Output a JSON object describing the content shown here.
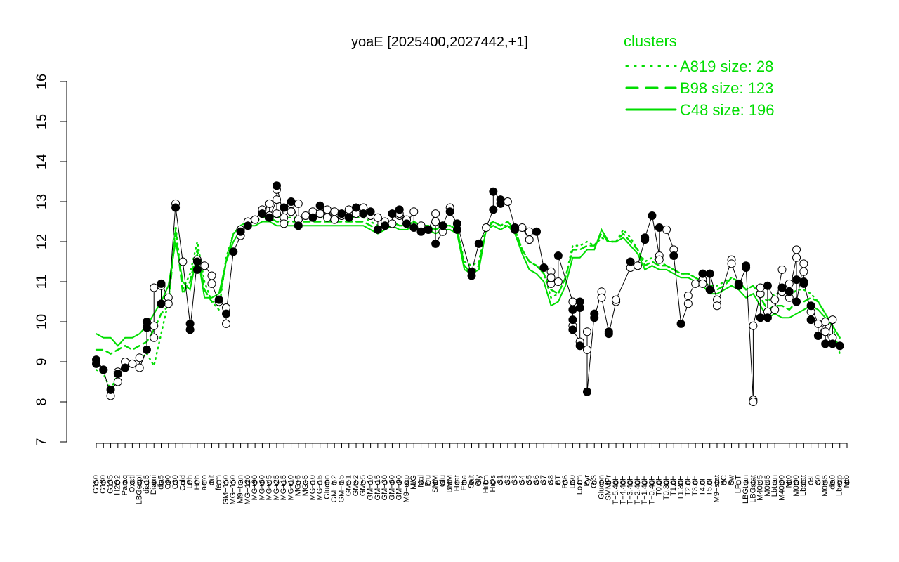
{
  "chart_data": {
    "type": "line",
    "title": "yoaE [2025400,2027442,+1]",
    "xlabel": "",
    "ylabel": "",
    "ylim": [
      7,
      16
    ],
    "yticks": [
      7,
      8,
      9,
      10,
      11,
      12,
      13,
      14,
      15,
      16
    ],
    "grid": false,
    "x_tick_labels": [
      "G150",
      "G180",
      "G135",
      "H2O2",
      "Paraq",
      "Oxctl",
      "LBGexpl",
      "dia15",
      "Diami",
      "dia5",
      "C90",
      "C30",
      "Cold",
      "LPh",
      "HPh",
      "aero",
      "nit",
      "ferm",
      "GM+150",
      "MG+150",
      "M9−tran",
      "MG+120",
      "MG+90",
      "MG+60",
      "MG+45",
      "MG+25",
      "MG+15",
      "MG+10",
      "MG+5",
      "MG−5",
      "MG−10",
      "MG−15",
      "Glucon",
      "GM−0.2",
      "GM−0.5",
      "GM−1",
      "GM−2",
      "GM−5",
      "GM−10",
      "GM−15",
      "GM−30",
      "GM−60",
      "GM−90",
      "M9−exp",
      "M/G",
      "Mal",
      "Fru",
      "SMM",
      "Glu",
      "BMM",
      "Heat",
      "Etha",
      "Salt",
      "Gly",
      "HiTm",
      "HiOs",
      "S1",
      "S2",
      "S3",
      "S4",
      "S5",
      "S6",
      "S7",
      "S8",
      "BT",
      "B36",
      "B60",
      "LoTm",
      "Pyr",
      "G/S",
      "Glucon",
      "SMMPr",
      "T−5.40H",
      "T−4.40H",
      "T−3.40H",
      "T−2.40H",
      "T−1.40H",
      "T−0.40H",
      "T0.0H",
      "T0.30H",
      "T1.0H",
      "T1.30H",
      "T2.0H",
      "T3.0H",
      "T4.0H",
      "T5.0H",
      "M9−stat",
      "BC",
      "Sw",
      "LPhT",
      "LBGtran",
      "LBGstat",
      "M40t45",
      "M0t45",
      "Lbtran",
      "M40t90",
      "Mt0",
      "M0t90",
      "Lbstat",
      "BI",
      "S0",
      "M0t45",
      "dia0",
      "Lbexp",
      "Mt0"
    ],
    "points": {
      "open": [
        [
          1,
          8.8
        ],
        [
          2,
          8.15
        ],
        [
          3,
          8.5
        ],
        [
          3,
          8.75
        ],
        [
          4,
          9.0
        ],
        [
          5,
          8.95
        ],
        [
          6,
          9.1
        ],
        [
          6,
          8.85
        ],
        [
          8,
          9.6
        ],
        [
          8,
          9.9
        ],
        [
          8,
          10.85
        ],
        [
          9,
          10.9
        ],
        [
          10,
          10.6
        ],
        [
          10,
          10.45
        ],
        [
          11,
          12.95
        ],
        [
          12,
          11.5
        ],
        [
          14,
          11.55
        ],
        [
          15,
          11.4
        ],
        [
          16,
          11.15
        ],
        [
          16,
          10.95
        ],
        [
          17,
          10.5
        ],
        [
          18,
          10.35
        ],
        [
          18,
          9.95
        ],
        [
          20,
          12.15
        ],
        [
          20,
          12.3
        ],
        [
          21,
          12.5
        ],
        [
          22,
          12.55
        ],
        [
          23,
          12.8
        ],
        [
          24,
          12.95
        ],
        [
          24,
          12.65
        ],
        [
          25,
          13.05
        ],
        [
          25,
          13.3
        ],
        [
          25,
          12.7
        ],
        [
          26,
          12.6
        ],
        [
          26,
          12.45
        ],
        [
          27,
          12.95
        ],
        [
          27,
          12.75
        ],
        [
          28,
          12.55
        ],
        [
          28,
          12.95
        ],
        [
          29,
          12.65
        ],
        [
          30,
          12.75
        ],
        [
          31,
          12.7
        ],
        [
          32,
          12.6
        ],
        [
          32,
          12.8
        ],
        [
          33,
          12.55
        ],
        [
          33,
          12.75
        ],
        [
          34,
          12.65
        ],
        [
          35,
          12.8
        ],
        [
          36,
          12.7
        ],
        [
          37,
          12.85
        ],
        [
          38,
          12.65
        ],
        [
          39,
          12.6
        ],
        [
          40,
          12.5
        ],
        [
          41,
          12.45
        ],
        [
          42,
          12.65
        ],
        [
          42,
          12.7
        ],
        [
          43,
          12.55
        ],
        [
          44,
          12.75
        ],
        [
          45,
          12.4
        ],
        [
          46,
          12.3
        ],
        [
          47,
          12.7
        ],
        [
          47,
          12.5
        ],
        [
          48,
          12.25
        ],
        [
          49,
          12.85
        ],
        [
          50,
          12.45
        ],
        [
          54,
          12.35
        ],
        [
          57,
          13.0
        ],
        [
          59,
          12.35
        ],
        [
          60,
          12.05
        ],
        [
          60,
          12.25
        ],
        [
          63,
          11.25
        ],
        [
          63,
          10.95
        ],
        [
          63,
          11.1
        ],
        [
          64,
          11.0
        ],
        [
          66,
          10.5
        ],
        [
          66,
          9.9
        ],
        [
          67,
          9.5
        ],
        [
          68,
          9.3
        ],
        [
          68,
          9.75
        ],
        [
          70,
          10.75
        ],
        [
          70,
          10.6
        ],
        [
          72,
          10.5
        ],
        [
          72,
          10.55
        ],
        [
          74,
          11.35
        ],
        [
          75,
          11.4
        ],
        [
          78,
          11.65
        ],
        [
          78,
          11.55
        ],
        [
          79,
          12.3
        ],
        [
          80,
          11.8
        ],
        [
          82,
          10.45
        ],
        [
          82,
          10.65
        ],
        [
          83,
          10.95
        ],
        [
          84,
          11.05
        ],
        [
          84,
          10.95
        ],
        [
          86,
          10.55
        ],
        [
          86,
          10.4
        ],
        [
          88,
          11.55
        ],
        [
          88,
          11.45
        ],
        [
          91,
          8.05
        ],
        [
          91,
          8.0
        ],
        [
          91,
          9.9
        ],
        [
          92,
          10.7
        ],
        [
          92,
          10.85
        ],
        [
          93,
          10.25
        ],
        [
          94,
          10.55
        ],
        [
          94,
          10.3
        ],
        [
          95,
          11.3
        ],
        [
          95,
          10.75
        ],
        [
          96,
          10.6
        ],
        [
          96,
          10.95
        ],
        [
          97,
          11.6
        ],
        [
          97,
          11.8
        ],
        [
          98,
          11.45
        ],
        [
          98,
          11.25
        ],
        [
          99,
          10.25
        ],
        [
          100,
          9.95
        ],
        [
          101,
          10.0
        ],
        [
          101,
          9.75
        ],
        [
          102,
          10.05
        ],
        [
          102,
          9.6
        ]
      ],
      "filled": [
        [
          0,
          8.95
        ],
        [
          0,
          9.05
        ],
        [
          1,
          8.8
        ],
        [
          2,
          8.3
        ],
        [
          3,
          8.7
        ],
        [
          4,
          8.85
        ],
        [
          7,
          9.3
        ],
        [
          7,
          9.85
        ],
        [
          7,
          10.0
        ],
        [
          9,
          10.45
        ],
        [
          9,
          10.95
        ],
        [
          11,
          12.85
        ],
        [
          13,
          9.95
        ],
        [
          13,
          9.8
        ],
        [
          14,
          11.5
        ],
        [
          14,
          11.3
        ],
        [
          17,
          10.55
        ],
        [
          18,
          10.2
        ],
        [
          19,
          11.75
        ],
        [
          20,
          12.25
        ],
        [
          21,
          12.4
        ],
        [
          23,
          12.7
        ],
        [
          24,
          12.6
        ],
        [
          25,
          13.4
        ],
        [
          26,
          12.85
        ],
        [
          27,
          13.0
        ],
        [
          28,
          12.4
        ],
        [
          30,
          12.6
        ],
        [
          31,
          12.9
        ],
        [
          34,
          12.7
        ],
        [
          35,
          12.6
        ],
        [
          36,
          12.85
        ],
        [
          37,
          12.7
        ],
        [
          38,
          12.75
        ],
        [
          39,
          12.3
        ],
        [
          40,
          12.4
        ],
        [
          41,
          12.7
        ],
        [
          42,
          12.8
        ],
        [
          43,
          12.45
        ],
        [
          44,
          12.35
        ],
        [
          45,
          12.25
        ],
        [
          46,
          12.3
        ],
        [
          47,
          11.95
        ],
        [
          48,
          12.4
        ],
        [
          49,
          12.75
        ],
        [
          50,
          12.3
        ],
        [
          50,
          12.45
        ],
        [
          52,
          11.15
        ],
        [
          52,
          11.25
        ],
        [
          53,
          11.95
        ],
        [
          55,
          12.8
        ],
        [
          55,
          13.25
        ],
        [
          56,
          13.05
        ],
        [
          56,
          12.95
        ],
        [
          58,
          12.35
        ],
        [
          58,
          12.3
        ],
        [
          61,
          12.25
        ],
        [
          62,
          11.35
        ],
        [
          64,
          11.65
        ],
        [
          66,
          10.3
        ],
        [
          66,
          10.05
        ],
        [
          66,
          9.8
        ],
        [
          67,
          10.35
        ],
        [
          67,
          10.5
        ],
        [
          67,
          9.4
        ],
        [
          68,
          8.25
        ],
        [
          69,
          10.2
        ],
        [
          69,
          10.1
        ],
        [
          71,
          9.75
        ],
        [
          71,
          9.7
        ],
        [
          74,
          11.5
        ],
        [
          76,
          12.05
        ],
        [
          76,
          12.1
        ],
        [
          77,
          12.65
        ],
        [
          78,
          12.35
        ],
        [
          80,
          11.65
        ],
        [
          81,
          9.95
        ],
        [
          84,
          11.2
        ],
        [
          85,
          10.8
        ],
        [
          85,
          11.2
        ],
        [
          89,
          10.95
        ],
        [
          89,
          10.9
        ],
        [
          90,
          11.35
        ],
        [
          90,
          11.4
        ],
        [
          92,
          10.1
        ],
        [
          93,
          10.1
        ],
        [
          93,
          10.9
        ],
        [
          95,
          10.85
        ],
        [
          96,
          10.75
        ],
        [
          97,
          11.05
        ],
        [
          97,
          10.5
        ],
        [
          98,
          10.95
        ],
        [
          98,
          11.0
        ],
        [
          99,
          10.05
        ],
        [
          99,
          10.4
        ],
        [
          100,
          9.65
        ],
        [
          101,
          9.45
        ],
        [
          102,
          9.45
        ],
        [
          103,
          9.4
        ]
      ]
    },
    "series": [
      {
        "name": "A819 size: 28",
        "style": "dotted",
        "values": [
          8.8,
          8.7,
          8.3,
          8.7,
          8.9,
          9.0,
          9.1,
          9.2,
          8.9,
          9.7,
          10.5,
          12.4,
          10.8,
          11.2,
          12.0,
          11.0,
          10.5,
          10.3,
          11.6,
          12.2,
          12.4,
          12.5,
          12.6,
          12.7,
          12.7,
          12.6,
          12.6,
          12.6,
          12.6,
          12.6,
          12.6,
          12.6,
          12.6,
          12.6,
          12.6,
          12.6,
          12.6,
          12.6,
          12.5,
          12.4,
          12.4,
          12.5,
          12.4,
          12.4,
          12.5,
          12.4,
          12.4,
          12.3,
          12.4,
          12.4,
          12.3,
          11.5,
          11.4,
          11.5,
          12.4,
          12.5,
          12.4,
          12.4,
          12.3,
          11.8,
          11.5,
          11.4,
          11.2,
          10.6,
          10.7,
          11.1,
          11.9,
          11.9,
          12.0,
          11.9,
          12.1,
          12.0,
          12.0,
          12.3,
          12.1,
          11.8,
          11.5,
          11.6,
          11.5,
          11.4,
          11.3,
          11.2,
          11.2,
          11.1,
          11.0,
          10.9,
          10.9,
          11.0,
          11.1,
          11.0,
          10.8,
          10.9,
          10.7,
          10.5,
          10.7,
          10.7,
          10.6,
          10.8,
          10.8,
          10.7,
          10.5,
          10.2,
          9.9,
          9.2
        ]
      },
      {
        "name": "B98 size: 123",
        "style": "dashed",
        "values": [
          9.3,
          9.3,
          9.2,
          9.3,
          9.4,
          9.3,
          9.4,
          9.5,
          9.8,
          10.2,
          10.4,
          12.3,
          10.7,
          11.0,
          11.8,
          10.8,
          10.5,
          10.5,
          11.5,
          12.2,
          12.4,
          12.5,
          12.5,
          12.6,
          12.6,
          12.5,
          12.5,
          12.5,
          12.5,
          12.5,
          12.5,
          12.5,
          12.5,
          12.5,
          12.5,
          12.5,
          12.5,
          12.5,
          12.4,
          12.3,
          12.4,
          12.5,
          12.4,
          12.4,
          12.5,
          12.4,
          12.4,
          12.3,
          12.4,
          12.4,
          12.3,
          11.4,
          11.2,
          11.4,
          12.3,
          12.5,
          12.4,
          12.5,
          12.3,
          11.8,
          11.5,
          11.4,
          11.2,
          10.8,
          10.7,
          11.1,
          11.8,
          11.8,
          11.9,
          11.9,
          12.2,
          12.0,
          12.0,
          12.2,
          12.0,
          11.8,
          11.4,
          11.5,
          11.4,
          11.4,
          11.3,
          11.2,
          11.2,
          11.1,
          11.0,
          10.8,
          10.8,
          10.9,
          11.1,
          11.0,
          10.8,
          10.9,
          10.6,
          10.3,
          10.4,
          10.4,
          10.3,
          10.5,
          10.5,
          10.6,
          10.5,
          10.2,
          9.9,
          9.6
        ]
      },
      {
        "name": "C48 size: 196",
        "style": "solid",
        "values": [
          9.7,
          9.6,
          9.6,
          9.4,
          9.6,
          9.6,
          9.7,
          9.9,
          10.2,
          10.5,
          10.9,
          12.0,
          11.0,
          10.8,
          11.7,
          10.6,
          10.6,
          10.7,
          11.5,
          12.0,
          12.3,
          12.4,
          12.4,
          12.5,
          12.5,
          12.4,
          12.4,
          12.4,
          12.4,
          12.4,
          12.4,
          12.4,
          12.4,
          12.4,
          12.4,
          12.4,
          12.4,
          12.4,
          12.3,
          12.2,
          12.3,
          12.4,
          12.3,
          12.3,
          12.4,
          12.3,
          12.3,
          12.2,
          12.3,
          12.3,
          12.2,
          11.3,
          11.2,
          11.3,
          12.3,
          12.4,
          12.3,
          12.4,
          12.2,
          11.7,
          11.3,
          11.2,
          11.0,
          10.4,
          10.5,
          10.9,
          11.6,
          11.6,
          11.8,
          11.8,
          12.3,
          12.0,
          12.0,
          12.1,
          11.9,
          11.7,
          11.3,
          11.4,
          11.3,
          11.3,
          11.2,
          11.1,
          11.1,
          11.0,
          10.9,
          10.7,
          10.7,
          10.8,
          10.9,
          10.8,
          10.6,
          10.7,
          10.4,
          10.1,
          10.2,
          10.1,
          10.1,
          10.2,
          10.3,
          10.4,
          10.3,
          10.1,
          9.9,
          9.6
        ]
      }
    ],
    "legend": {
      "title": "clusters",
      "entries": [
        "A819 size: 28",
        "B98 size: 123",
        "C48 size: 196"
      ],
      "placement": "top-right"
    },
    "colors": {
      "cluster_line": "#00dd00",
      "points": "#000000",
      "axes": "#000000"
    }
  }
}
